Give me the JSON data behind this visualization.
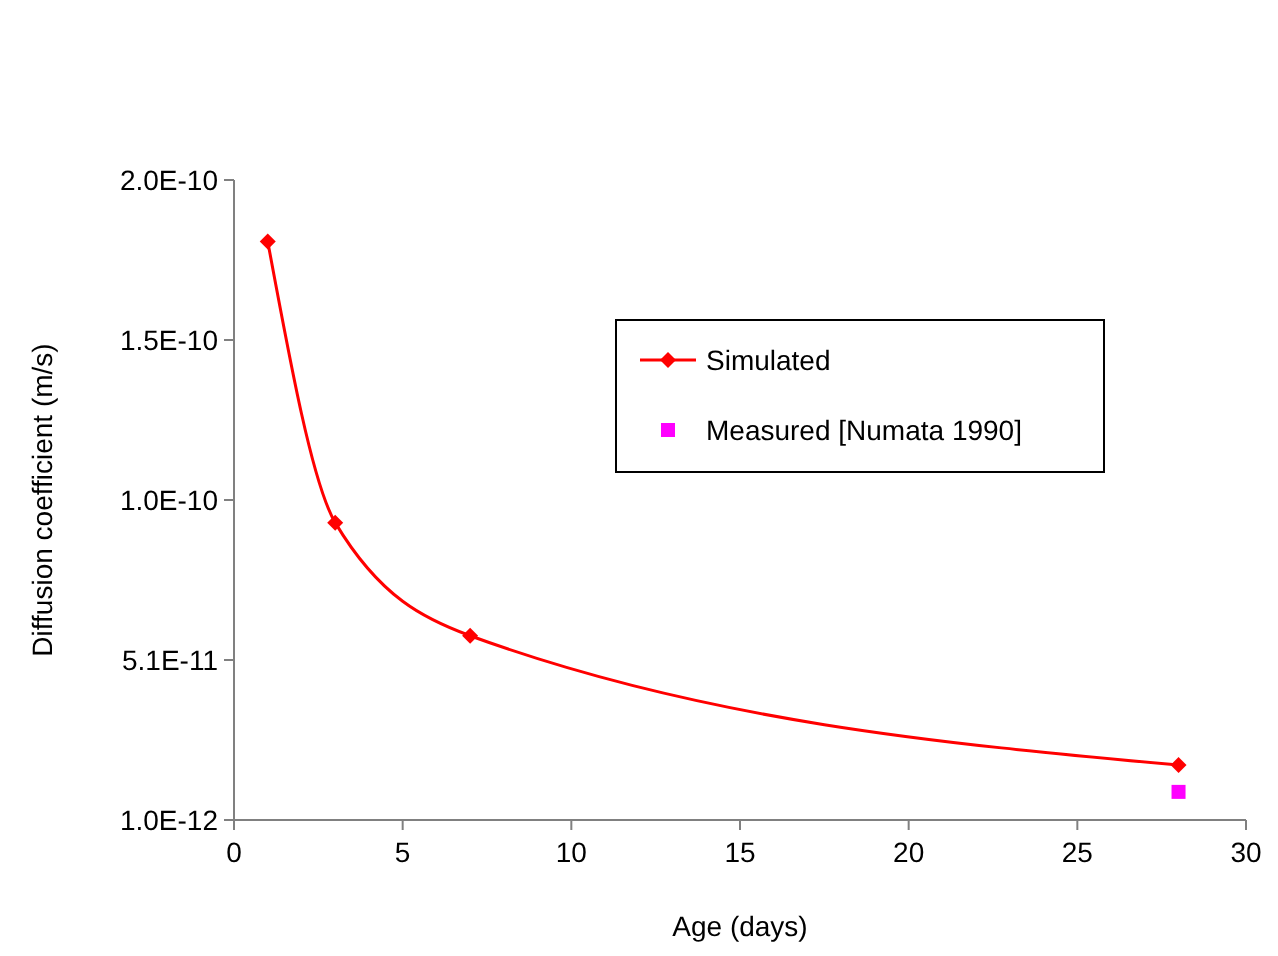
{
  "chart_data": {
    "type": "line",
    "xlabel": "Age (days)",
    "ylabel": "Diffusion coefficient (m/s)",
    "xlim": [
      0,
      30
    ],
    "xticks": [
      0,
      5,
      10,
      15,
      20,
      25,
      30
    ],
    "ylim": [
      1e-12,
      1.99e-10
    ],
    "yticks": [
      {
        "value": 1e-12,
        "label": "1.0E-12"
      },
      {
        "value": 5.05e-11,
        "label": "5.1E-11"
      },
      {
        "value": 1e-10,
        "label": "1.0E-10"
      },
      {
        "value": 1.495e-10,
        "label": "1.5E-10"
      },
      {
        "value": 1.99e-10,
        "label": "2.0E-10"
      }
    ],
    "grid": false,
    "legend": "top right",
    "series": [
      {
        "name": "Simulated",
        "color": "#ff0000",
        "marker": "diamond",
        "x": [
          1,
          3,
          7,
          28
        ],
        "values": [
          1.8e-10,
          9.3e-11,
          5.8e-11,
          1.8e-11
        ]
      },
      {
        "name": "Measured [Numata 1990]",
        "type": "scatter",
        "color": "#ff00ff",
        "marker": "square",
        "x": [
          28
        ],
        "values": [
          9.7e-12
        ]
      }
    ]
  }
}
